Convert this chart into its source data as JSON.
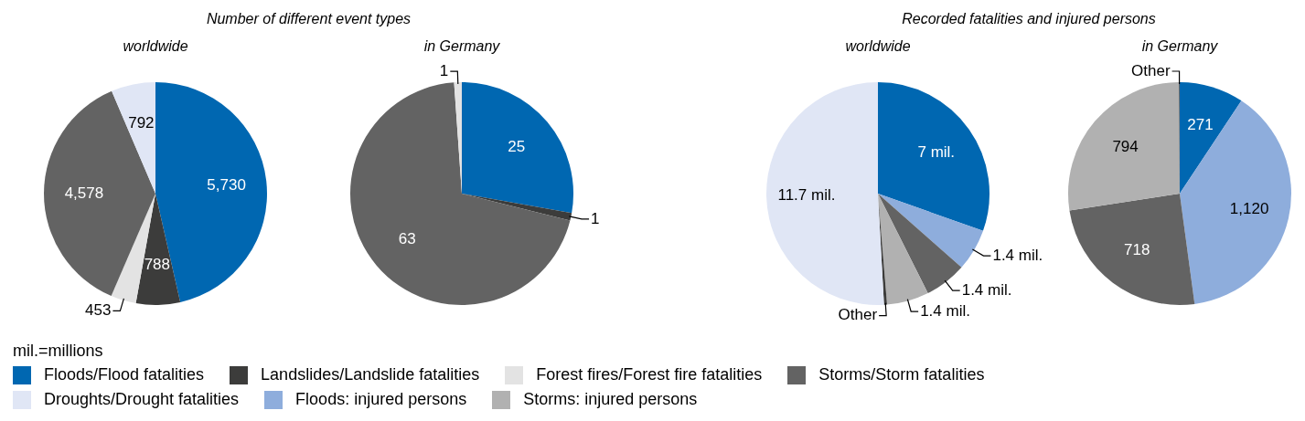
{
  "chart_data": [
    {
      "type": "pie",
      "title": "Number of different event types",
      "subtitle": "worldwide",
      "categories": [
        "Floods/Flood fatalities",
        "Landslides/Landslide fatalities",
        "Forest fires/Forest fire fatalities",
        "Storms/Storm fatalities",
        "Droughts/Drought fatalities"
      ],
      "values": [
        5730,
        788,
        453,
        4578,
        792
      ],
      "value_labels": [
        "5,730",
        "788",
        "453",
        "4,578",
        "792"
      ],
      "colors": [
        "#0067b1",
        "#3c3c3b",
        "#e3e3e3",
        "#636363",
        "#e0e6f5"
      ],
      "legend": "bottom"
    },
    {
      "type": "pie",
      "subtitle": "in Germany",
      "categories": [
        null,
        null,
        null,
        null
      ],
      "values": [
        25,
        1,
        63,
        1
      ],
      "value_labels": [
        "25",
        "1",
        "63",
        "1"
      ],
      "colors": [
        "#0067b1",
        "#3c3c3b",
        "#636363",
        "#e3e3e3"
      ]
    },
    {
      "type": "pie",
      "title": "Recorded fatalities and injured persons",
      "subtitle": "worldwide",
      "categories": [
        null,
        "Floods: injured persons",
        null,
        "Storms: injured persons",
        "Other",
        null
      ],
      "values": [
        7,
        1.4,
        1.4,
        1.4,
        0.1,
        11.7
      ],
      "value_labels": [
        "7 mil.",
        "1.4 mil.",
        "1.4 mil.",
        "1.4 mil.",
        null,
        "11.7 mil."
      ],
      "colors": [
        "#0067b1",
        "#8eaddc",
        "#636363",
        "#b1b1b1",
        "#3c3c3b",
        "#e0e6f5"
      ],
      "annotations": [
        "mil.=millions"
      ],
      "legend": "bottom"
    },
    {
      "type": "pie",
      "subtitle": "in Germany",
      "categories": [
        null,
        null,
        null,
        null,
        "Other"
      ],
      "values": [
        271,
        1120,
        718,
        794,
        3
      ],
      "value_labels": [
        "271",
        "1,120",
        "718",
        "794",
        null
      ],
      "colors": [
        "#0067b1",
        "#8eaddc",
        "#636363",
        "#b1b1b1",
        "#3c3c3b"
      ]
    }
  ]
}
